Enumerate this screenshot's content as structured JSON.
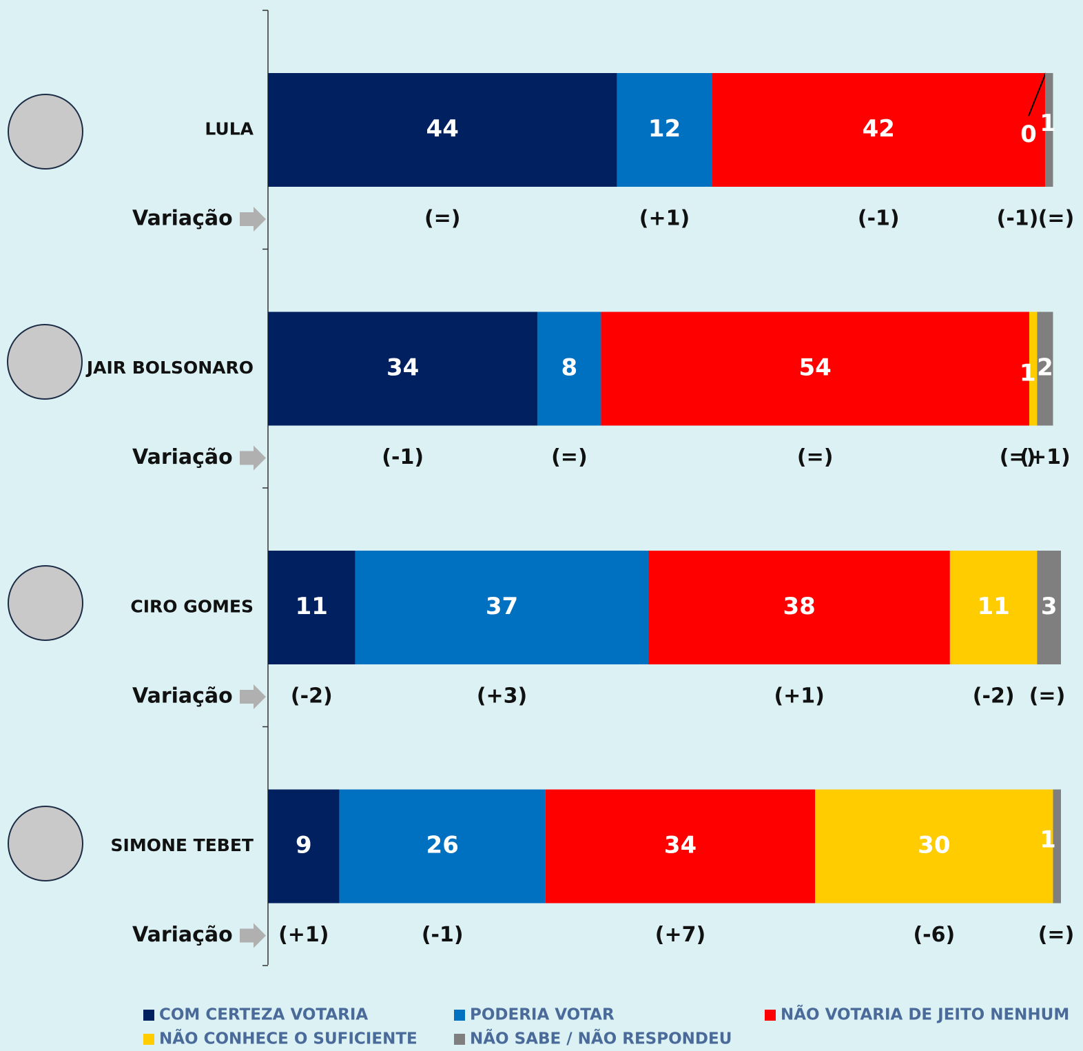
{
  "chart_data": {
    "type": "bar",
    "orientation": "horizontal",
    "stacked": true,
    "categories": [
      "LULA",
      "JAIR BOLSONARO",
      "CIRO GOMES",
      "SIMONE TEBET"
    ],
    "xlim": [
      0,
      100
    ],
    "variation_label": "Variação",
    "series": [
      {
        "name": "COM CERTEZA VOTARIA",
        "color": "#002060",
        "values": [
          44,
          34,
          11,
          9
        ],
        "variations": [
          "(=)",
          "(-1)",
          "(-2)",
          "(+1)"
        ]
      },
      {
        "name": "PODERIA VOTAR",
        "color": "#0070c0",
        "values": [
          12,
          8,
          37,
          26
        ],
        "variations": [
          "(+1)",
          "(=)",
          "(+3)",
          "(-1)"
        ]
      },
      {
        "name": "NÃO VOTARIA DE JEITO NENHUM",
        "color": "#ff0000",
        "values": [
          42,
          54,
          38,
          34
        ],
        "variations": [
          "(-1)",
          "(=)",
          "(+1)",
          "(+7)"
        ]
      },
      {
        "name": "NÃO CONHECE O SUFICIENTE",
        "color": "#ffcc00",
        "values": [
          0,
          1,
          11,
          30
        ],
        "variations": [
          "(-1)",
          "(=)",
          "(-2)",
          "(-6)"
        ]
      },
      {
        "name": "NÃO SABE / NÃO RESPONDEU",
        "color": "#7f7f7f",
        "values": [
          1,
          2,
          3,
          1
        ],
        "variations": [
          "(=)",
          "(+1)",
          "(=)",
          "(=)"
        ]
      }
    ],
    "legend": "bottom"
  }
}
